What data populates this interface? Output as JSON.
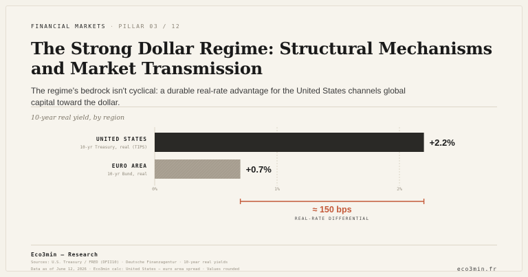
{
  "header": {
    "kicker": "FINANCIAL MARKETS",
    "separator": "·",
    "pillar": "PILLAR 03 / 12",
    "title": "The Strong Dollar Regime: Structural Mechanisms and Market Transmission",
    "subtitle": "The regime's bedrock isn't cyclical: a durable real-rate advantage for the United States channels global capital toward the dollar."
  },
  "chart_caption": "10-year real yield, by region",
  "chart_data": {
    "type": "bar",
    "orientation": "horizontal",
    "title": "10-year real yield, by region",
    "categories": [
      "UNITED STATES",
      "EURO AREA"
    ],
    "category_sublabels": [
      "10-yr Treasury, real (TIPS)",
      "10-yr Bund, real"
    ],
    "values": [
      2.2,
      0.7
    ],
    "value_labels": [
      "+2.2%",
      "+0.7%"
    ],
    "unit": "%",
    "xlim": [
      0,
      2.2
    ],
    "ticks": [
      0,
      1,
      2
    ],
    "tick_labels": [
      "0%",
      "1%",
      "2%"
    ],
    "grid": true,
    "bar_colors": [
      "#2a2926",
      "#a69d8f"
    ],
    "annotation": {
      "from": 0.7,
      "to": 2.2,
      "label": "≈ 150 bps",
      "sublabel": "REAL-RATE DIFFERENTIAL",
      "color": "#c45a3a"
    }
  },
  "footer": {
    "brand": "Eco3min — Research",
    "sources": "Sources: U.S. Treasury / FRED (DFII10) · Deutsche Finanzagentur · 10-year real yields",
    "note": "Data as of June 12, 2026 · Eco3min calc: United States − euro area spread · Values rounded",
    "site": "eco3min.fr"
  }
}
